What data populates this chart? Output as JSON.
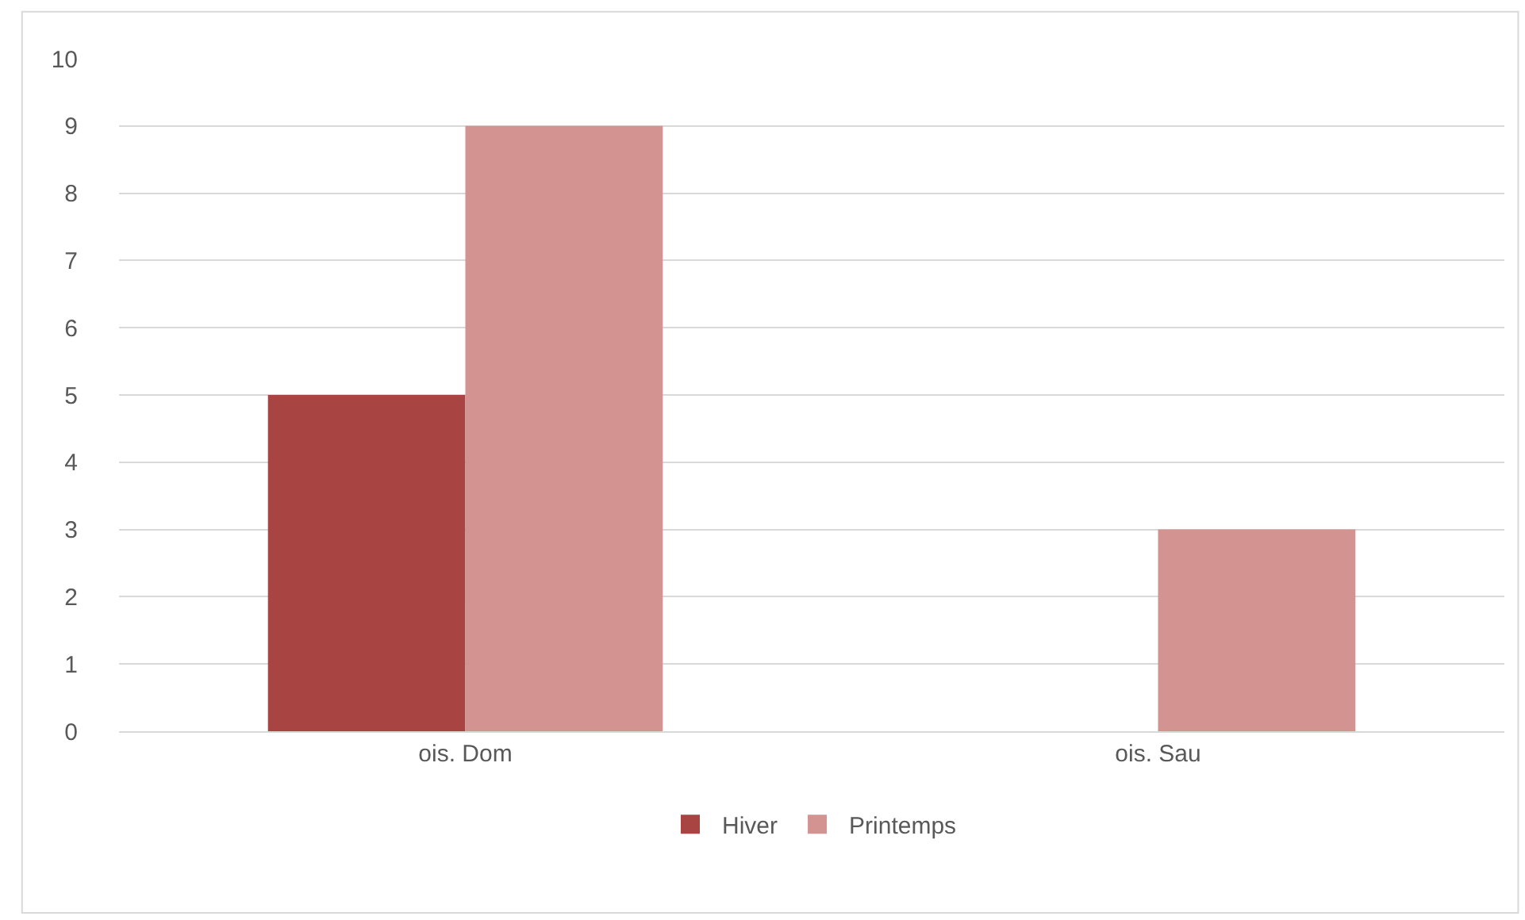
{
  "chart_data": {
    "type": "bar",
    "categories": [
      "ois. Dom",
      "ois. Sau"
    ],
    "series": [
      {
        "name": "Hiver",
        "color": "#a84542",
        "values": [
          5,
          0
        ]
      },
      {
        "name": "Printemps",
        "color": "#d39391",
        "values": [
          9,
          3
        ]
      }
    ],
    "ylim": [
      0,
      10
    ],
    "yticks": [
      0,
      1,
      2,
      3,
      4,
      5,
      6,
      7,
      8,
      9,
      10
    ],
    "grid": "y",
    "legend": "bottom"
  }
}
